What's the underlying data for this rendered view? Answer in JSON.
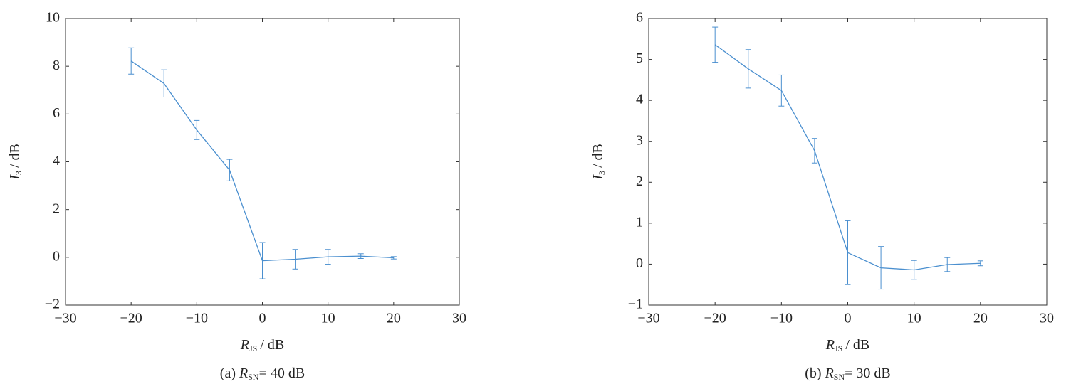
{
  "chart_data": [
    {
      "type": "line",
      "color": "#4a8fcf",
      "xlabel": {
        "symbol": "R",
        "subscript": "JS",
        "unit": "/ dB"
      },
      "ylabel": {
        "symbol": "I",
        "subscript": "3",
        "unit": "/ dB"
      },
      "caption": {
        "prefix": "(a)",
        "symbol": "R",
        "subscript": "SN",
        "rest": "= 40 dB"
      },
      "x": [
        -20,
        -15,
        -10,
        -5,
        0,
        5,
        10,
        15,
        20
      ],
      "values": [
        8.22,
        7.28,
        5.33,
        3.65,
        -0.14,
        -0.08,
        0.02,
        0.05,
        -0.02
      ],
      "errors": [
        0.55,
        0.57,
        0.4,
        0.45,
        0.76,
        0.41,
        0.31,
        0.1,
        0.05
      ],
      "xlim": [
        -30,
        30
      ],
      "xticks": [
        {
          "value": -30,
          "label": "−30"
        },
        {
          "value": -20,
          "label": "−20"
        },
        {
          "value": -10,
          "label": "−10"
        },
        0,
        10,
        20,
        30
      ],
      "ylim": [
        -2,
        10
      ],
      "yticks": [
        {
          "value": -2,
          "label": "−2"
        },
        0,
        2,
        4,
        6,
        8,
        10
      ]
    },
    {
      "type": "line",
      "color": "#4a8fcf",
      "xlabel": {
        "symbol": "R",
        "subscript": "JS",
        "unit": "/ dB"
      },
      "ylabel": {
        "symbol": "I",
        "subscript": "3",
        "unit": "/ dB"
      },
      "caption": {
        "prefix": "(b)",
        "symbol": "R",
        "subscript": "SN",
        "rest": "= 30 dB"
      },
      "x": [
        -20,
        -15,
        -10,
        -5,
        0,
        5,
        10,
        15,
        20
      ],
      "values": [
        5.36,
        4.77,
        4.24,
        2.77,
        0.28,
        -0.09,
        -0.14,
        -0.01,
        0.02
      ],
      "errors": [
        0.43,
        0.47,
        0.38,
        0.3,
        0.78,
        0.52,
        0.23,
        0.17,
        0.06
      ],
      "xlim": [
        -30,
        30
      ],
      "xticks": [
        {
          "value": -30,
          "label": "−30"
        },
        {
          "value": -20,
          "label": "−20"
        },
        {
          "value": -10,
          "label": "−10"
        },
        0,
        10,
        20,
        30
      ],
      "ylim": [
        -1,
        6
      ],
      "yticks": [
        {
          "value": -1,
          "label": "−1"
        },
        0,
        1,
        2,
        3,
        4,
        5,
        6
      ]
    }
  ]
}
